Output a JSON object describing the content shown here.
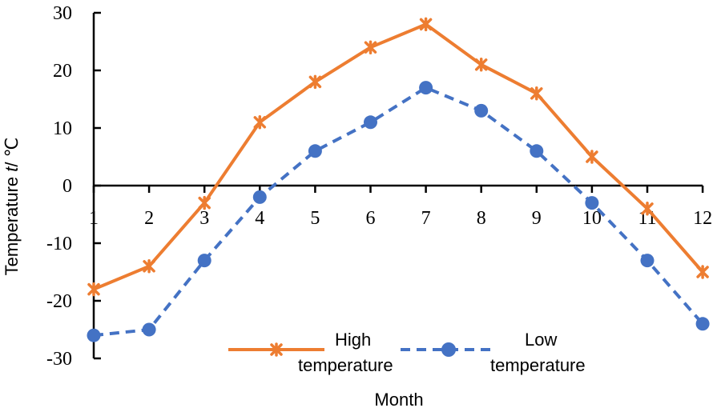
{
  "chart_data": {
    "type": "line",
    "title": "",
    "xlabel": "Month",
    "ylabel_prefix": "Temperature ",
    "ylabel_var": "t",
    "ylabel_suffix": "/ ℃",
    "categories": [
      "1",
      "2",
      "3",
      "4",
      "5",
      "6",
      "7",
      "8",
      "9",
      "10",
      "11",
      "12"
    ],
    "ylim": [
      -30,
      30
    ],
    "yticks": [
      "30",
      "20",
      "10",
      "0",
      "-10",
      "-20",
      "-30"
    ],
    "ytick_values": [
      30,
      20,
      10,
      0,
      -10,
      -20,
      -30
    ],
    "grid": false,
    "legend_position": "bottom-center",
    "series": [
      {
        "name": "High temperature",
        "name_line1": "High",
        "name_line2": "temperature",
        "values": [
          -18,
          -14,
          -3,
          11,
          18,
          24,
          28,
          21,
          16,
          5,
          -4,
          -15
        ],
        "color": "#ED7D31",
        "marker": "star",
        "line_style": "solid"
      },
      {
        "name": "Low temperature",
        "name_line1": "Low",
        "name_line2": "temperature",
        "values": [
          -26,
          -25,
          -13,
          -2,
          6,
          11,
          17,
          13,
          6,
          -3,
          -13,
          -24
        ],
        "color": "#4472C4",
        "marker": "circle",
        "line_style": "dashed"
      }
    ]
  }
}
